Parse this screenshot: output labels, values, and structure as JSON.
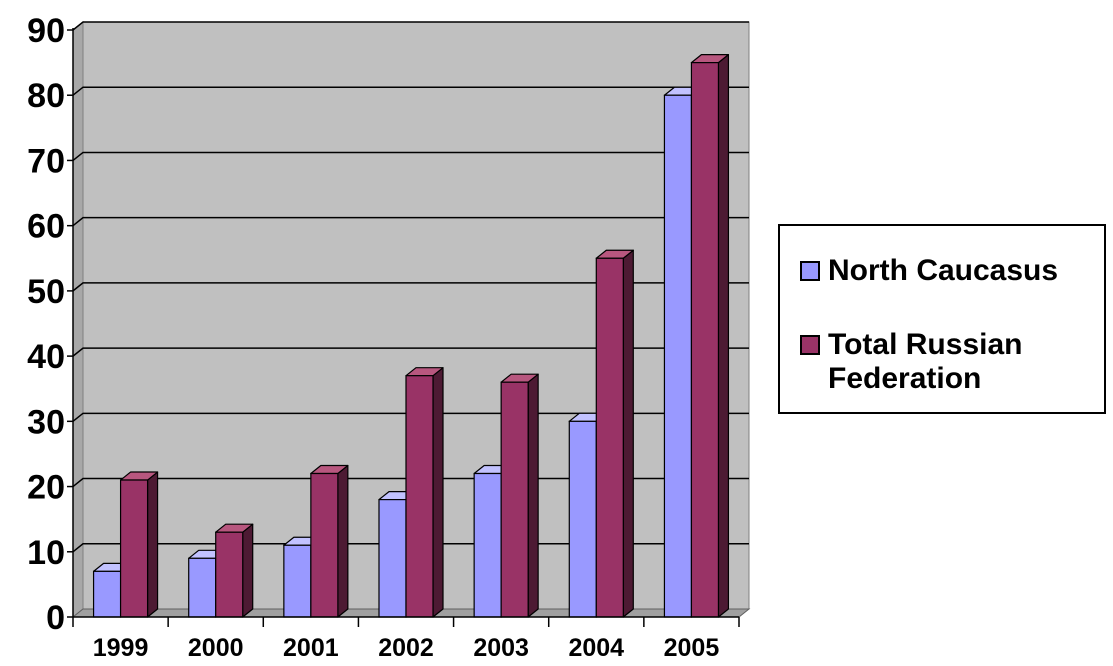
{
  "chart_data": {
    "type": "bar",
    "categories": [
      "1999",
      "2000",
      "2001",
      "2002",
      "2003",
      "2004",
      "2005"
    ],
    "series": [
      {
        "name": "North Caucasus",
        "values": [
          7,
          9,
          11,
          18,
          22,
          30,
          80
        ]
      },
      {
        "name": "Total Russian Federation",
        "values": [
          21,
          13,
          22,
          37,
          36,
          55,
          85
        ]
      }
    ],
    "ylim": [
      0,
      90
    ],
    "yticks": [
      0,
      10,
      20,
      30,
      40,
      50,
      60,
      70,
      80,
      90
    ],
    "grid": true,
    "legend_position": "right",
    "colors": {
      "series": [
        "#9999ff",
        "#993366"
      ],
      "series_side": [
        "#6b6bb3",
        "#4d1a33"
      ],
      "series_top": [
        "#c2c2ff",
        "#b8577f"
      ],
      "plot_background": "#c0c0c0",
      "floor": "#a0a0a0",
      "gridline": "#000000"
    }
  }
}
